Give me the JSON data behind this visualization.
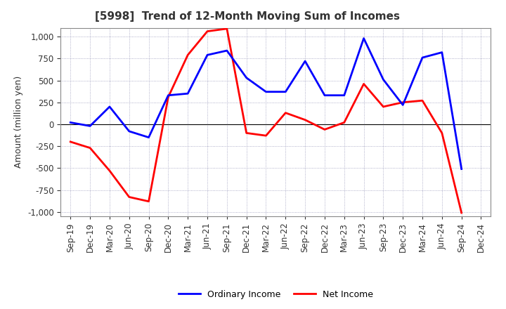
{
  "title": "[5998]  Trend of 12-Month Moving Sum of Incomes",
  "ylabel": "Amount (million yen)",
  "x_labels": [
    "Sep-19",
    "Dec-19",
    "Mar-20",
    "Jun-20",
    "Sep-20",
    "Dec-20",
    "Mar-21",
    "Jun-21",
    "Sep-21",
    "Dec-21",
    "Mar-22",
    "Jun-22",
    "Sep-22",
    "Dec-22",
    "Mar-23",
    "Jun-23",
    "Sep-23",
    "Dec-23",
    "Mar-24",
    "Jun-24",
    "Sep-24",
    "Dec-24"
  ],
  "ordinary_income": [
    20,
    -20,
    200,
    -80,
    -150,
    330,
    350,
    790,
    840,
    530,
    370,
    370,
    720,
    330,
    330,
    980,
    510,
    220,
    760,
    820,
    -510,
    null
  ],
  "net_income": [
    -200,
    -270,
    -530,
    -830,
    -880,
    310,
    790,
    1060,
    1090,
    -100,
    -130,
    130,
    50,
    -60,
    20,
    460,
    200,
    250,
    270,
    -100,
    -1010,
    null
  ],
  "ordinary_income_color": "#0000ff",
  "net_income_color": "#ff0000",
  "ylim": [
    -1050,
    1100
  ],
  "yticks": [
    -1000,
    -750,
    -500,
    -250,
    0,
    250,
    500,
    750,
    1000
  ],
  "background_color": "#ffffff",
  "grid_color": "#9999bb",
  "legend_labels": [
    "Ordinary Income",
    "Net Income"
  ],
  "title_color": "#333333",
  "title_fontsize": 11,
  "ylabel_fontsize": 9,
  "tick_fontsize": 8.5,
  "linewidth": 2.0
}
